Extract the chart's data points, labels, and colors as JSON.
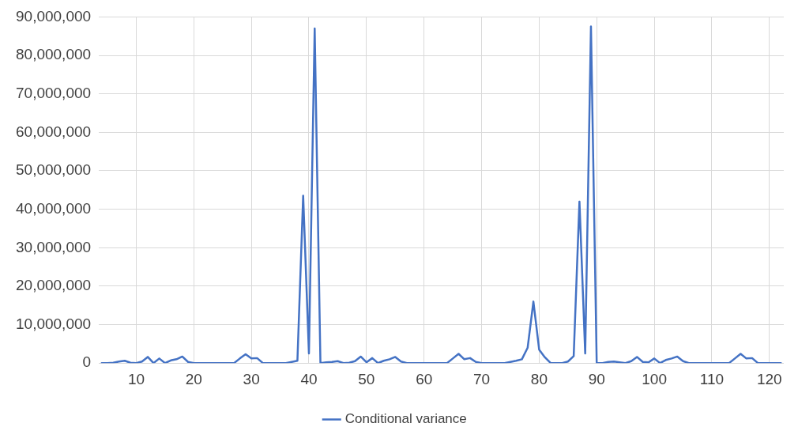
{
  "chart_data": {
    "type": "line",
    "x": [
      4,
      5,
      6,
      7,
      8,
      9,
      10,
      11,
      12,
      13,
      14,
      15,
      16,
      17,
      18,
      19,
      20,
      21,
      22,
      23,
      24,
      25,
      26,
      27,
      28,
      29,
      30,
      31,
      32,
      33,
      34,
      35,
      36,
      37,
      38,
      39,
      40,
      41,
      42,
      43,
      44,
      45,
      46,
      47,
      48,
      49,
      50,
      51,
      52,
      53,
      54,
      55,
      56,
      57,
      58,
      59,
      60,
      61,
      62,
      63,
      64,
      65,
      66,
      67,
      68,
      69,
      70,
      71,
      72,
      73,
      74,
      75,
      76,
      77,
      78,
      79,
      80,
      81,
      82,
      83,
      84,
      85,
      86,
      87,
      88,
      89,
      90,
      91,
      92,
      93,
      94,
      95,
      96,
      97,
      98,
      99,
      100,
      101,
      102,
      103,
      104,
      105,
      106,
      107,
      108,
      109,
      110,
      111,
      112,
      113,
      114,
      115,
      116,
      117,
      118,
      119,
      120,
      121,
      122
    ],
    "series": [
      {
        "name": "Conditional variance",
        "color": "#4472c4",
        "values": [
          0,
          0,
          100000,
          400000,
          600000,
          100000,
          0,
          400000,
          1600000,
          0,
          1200000,
          0,
          700000,
          1000000,
          1700000,
          300000,
          0,
          0,
          0,
          0,
          0,
          0,
          0,
          0,
          1200000,
          2300000,
          1200000,
          1300000,
          0,
          0,
          0,
          0,
          0,
          300000,
          600000,
          43500000,
          2500000,
          87000000,
          0,
          200000,
          300000,
          500000,
          0,
          100000,
          500000,
          1700000,
          200000,
          1300000,
          0,
          600000,
          1000000,
          1600000,
          400000,
          0,
          0,
          0,
          0,
          0,
          0,
          0,
          0,
          1200000,
          2400000,
          1000000,
          1300000,
          300000,
          0,
          0,
          0,
          0,
          0,
          300000,
          600000,
          1000000,
          4000000,
          16000000,
          3500000,
          1500000,
          0,
          0,
          0,
          400000,
          1800000,
          42000000,
          2500000,
          87500000,
          0,
          0,
          300000,
          400000,
          200000,
          0,
          500000,
          1600000,
          300000,
          200000,
          1200000,
          0,
          800000,
          1200000,
          1700000,
          500000,
          0,
          0,
          0,
          0,
          0,
          0,
          0,
          0,
          1200000,
          2400000,
          1200000,
          1300000,
          0,
          0,
          0,
          0,
          0
        ]
      }
    ],
    "xlim": [
      3.5,
      122.5
    ],
    "xticks": [
      10,
      20,
      30,
      40,
      50,
      60,
      70,
      80,
      90,
      100,
      110,
      120
    ],
    "ylim": [
      0,
      90000000
    ],
    "yticks": [
      0,
      {
        "value": 10000000,
        "label": "10,000,000"
      },
      {
        "value": 20000000,
        "label": "20,000,000"
      },
      {
        "value": 30000000,
        "label": "30,000,000"
      },
      {
        "value": 40000000,
        "label": "40,000,000"
      },
      {
        "value": 50000000,
        "label": "50,000,000"
      },
      {
        "value": 60000000,
        "label": "60,000,000"
      },
      {
        "value": 70000000,
        "label": "70,000,000"
      },
      {
        "value": 80000000,
        "label": "80,000,000"
      },
      {
        "value": 90000000,
        "label": "90,000,000"
      }
    ],
    "grid": true,
    "legend": "bottom",
    "marker": "none",
    "line_style": "solid"
  }
}
